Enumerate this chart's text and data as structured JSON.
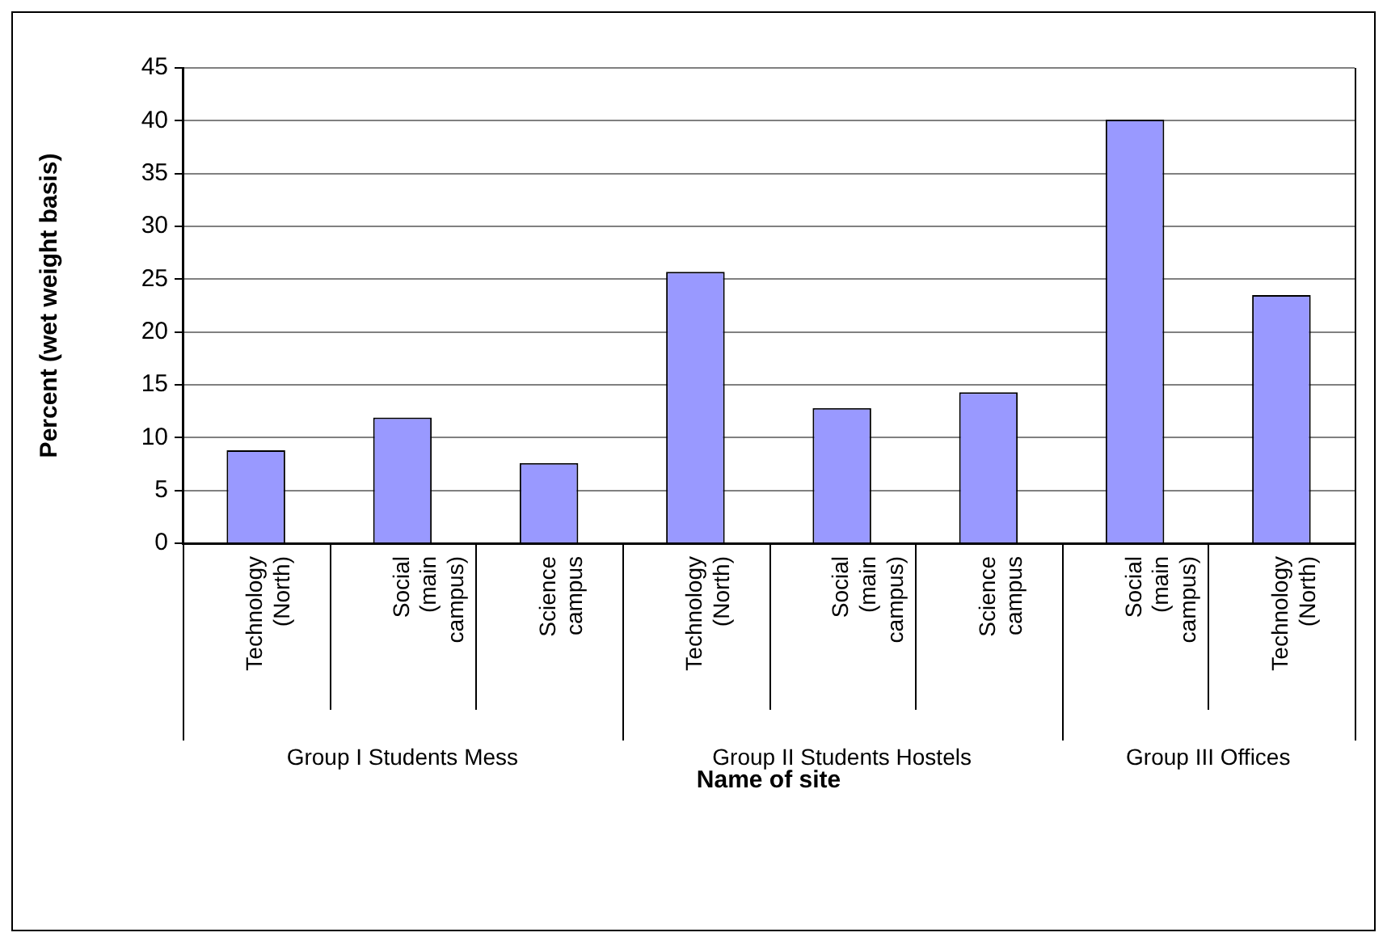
{
  "chart_data": {
    "type": "bar",
    "xlabel": "Name of site",
    "ylabel": "Percent (wet weight basis)",
    "categories": [
      "Technology (North)",
      "Social (main campus)",
      "Science campus",
      "Technology (North)",
      "Social (main campus)",
      "Science campus",
      "Social (main campus)",
      "Technology (North)"
    ],
    "values": [
      8.8,
      11.9,
      7.6,
      25.7,
      12.8,
      14.3,
      40.1,
      23.5
    ],
    "color": "#9999ff",
    "ylim": [
      0,
      45
    ],
    "yticks": [
      0,
      5,
      10,
      15,
      20,
      25,
      30,
      35,
      40,
      45
    ],
    "grid": "y",
    "legend": false,
    "annotations": [
      "Group I Students Mess",
      "Group II Students Hostels",
      "Group III Offices"
    ]
  }
}
